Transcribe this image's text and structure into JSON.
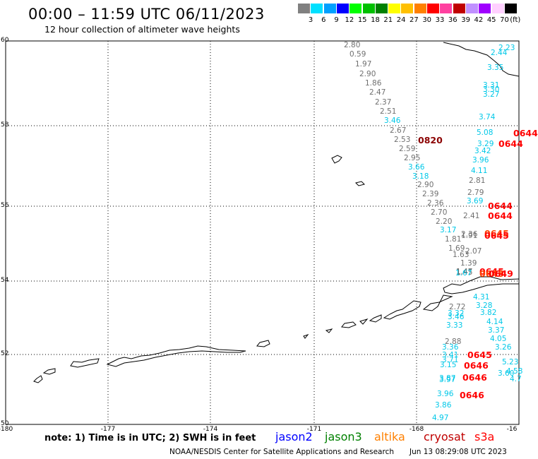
{
  "header": {
    "title": "00:00 – 11:59 UTC 06/11/2023",
    "subtitle": "12 hour collection of altimeter wave heights"
  },
  "scale": {
    "labels": [
      "3",
      "6",
      "9",
      "12",
      "15",
      "18",
      "21",
      "24",
      "27",
      "30",
      "33",
      "36",
      "39",
      "42",
      "45",
      "70"
    ],
    "unit": "(ft)",
    "colors": [
      "#808080",
      "#00e0ff",
      "#00a0ff",
      "#0000ff",
      "#00ff00",
      "#00c000",
      "#008000",
      "#ffff00",
      "#ffc000",
      "#ff8000",
      "#ff0000",
      "#ff40a0",
      "#c00000",
      "#c090ff",
      "#a000ff",
      "#ffd0ff",
      "#000000"
    ]
  },
  "map": {
    "lat_labels": [
      "60",
      "58",
      "56",
      "54",
      "52",
      "50"
    ],
    "lon_labels": [
      "-180",
      "-177",
      "-174",
      "-171",
      "-168",
      "-16"
    ]
  },
  "footer": {
    "note": "note: 1) Time is in UTC; 2) SWH is in feet",
    "satellites": [
      {
        "name": "jason2",
        "color": "#0000ff"
      },
      {
        "name": "jason3",
        "color": "#008000"
      },
      {
        "name": "altika",
        "color": "#ff8000"
      },
      {
        "name": "cryosat",
        "color": "#c00000"
      },
      {
        "name": "s3a",
        "color": "#ff0000"
      }
    ],
    "credit": "NOAA/NESDIS Center for Satellite Applications and Research",
    "timestamp": "Jun 13 08:29:08 UTC 2023"
  },
  "observations": {
    "gray_values": [
      "2.80",
      "0.59",
      "1.97",
      "2.90",
      "1.86",
      "2.47",
      "2.37",
      "2.51",
      "2.67",
      "2.53",
      "2.59",
      "2.95",
      "2.90",
      "2.39",
      "2.36",
      "2.70",
      "2.20",
      "1.81",
      "1.69",
      "1.63",
      "1.47",
      "1.45",
      "2.81",
      "2.79",
      "2.41",
      "2.36",
      "1.91",
      "2.07",
      "1.39",
      "2.72",
      "2.88"
    ],
    "cyan_values": [
      "2.23",
      "2.44",
      "3.35",
      "3.31",
      "3.30",
      "3.27",
      "3.74",
      "5.08",
      "3.29",
      "3.42",
      "3.96",
      "4.11",
      "3.46",
      "3.66",
      "3.18",
      "3.69",
      "3.17",
      "1.67",
      "4.31",
      "3.28",
      "3.82",
      "3.32",
      "3.46",
      "3.33",
      "4.14",
      "3.37",
      "4.05",
      "3.26",
      "3.36",
      "3.41",
      "3.71",
      "3.15",
      "5.23",
      "3.60",
      "4.58",
      "4.7",
      "3.87",
      "3.97",
      "3.96",
      "3.86",
      "4.97"
    ],
    "time_tags": [
      "0820",
      "0644",
      "0644",
      "0644",
      "0644",
      "0645",
      "0645",
      "0645",
      "0645",
      "0649",
      "0645",
      "0646",
      "0646",
      "0646"
    ]
  }
}
